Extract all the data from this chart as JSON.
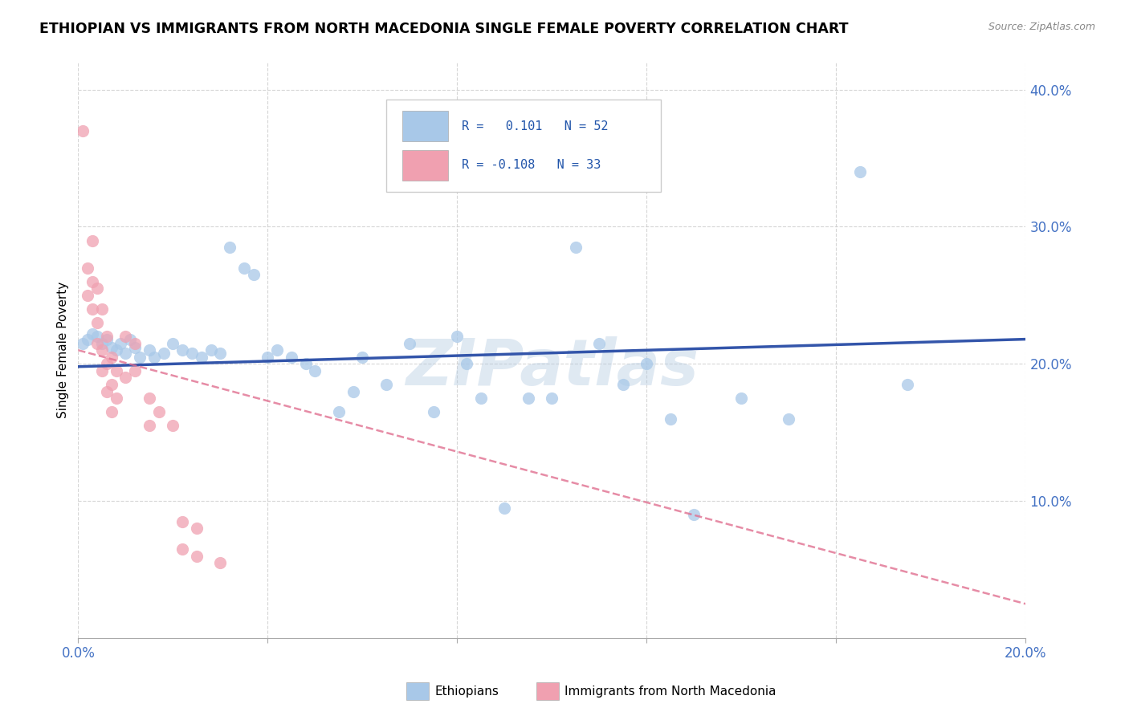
{
  "title": "ETHIOPIAN VS IMMIGRANTS FROM NORTH MACEDONIA SINGLE FEMALE POVERTY CORRELATION CHART",
  "source_text": "Source: ZipAtlas.com",
  "ylabel": "Single Female Poverty",
  "xlim": [
    0.0,
    0.2
  ],
  "ylim": [
    0.0,
    0.42
  ],
  "xticks": [
    0.0,
    0.04,
    0.08,
    0.12,
    0.16,
    0.2
  ],
  "yticks": [
    0.0,
    0.1,
    0.2,
    0.3,
    0.4
  ],
  "watermark": "ZIPatlas",
  "blue_color": "#A8C8E8",
  "pink_color": "#F0A0B0",
  "blue_line_color": "#3355AA",
  "pink_line_color": "#E07090",
  "blue_scatter": [
    [
      0.001,
      0.215
    ],
    [
      0.002,
      0.218
    ],
    [
      0.003,
      0.222
    ],
    [
      0.004,
      0.22
    ],
    [
      0.005,
      0.215
    ],
    [
      0.006,
      0.218
    ],
    [
      0.007,
      0.212
    ],
    [
      0.008,
      0.21
    ],
    [
      0.009,
      0.215
    ],
    [
      0.01,
      0.208
    ],
    [
      0.011,
      0.218
    ],
    [
      0.012,
      0.212
    ],
    [
      0.013,
      0.205
    ],
    [
      0.015,
      0.21
    ],
    [
      0.016,
      0.205
    ],
    [
      0.018,
      0.208
    ],
    [
      0.02,
      0.215
    ],
    [
      0.022,
      0.21
    ],
    [
      0.024,
      0.208
    ],
    [
      0.026,
      0.205
    ],
    [
      0.028,
      0.21
    ],
    [
      0.03,
      0.208
    ],
    [
      0.032,
      0.285
    ],
    [
      0.035,
      0.27
    ],
    [
      0.037,
      0.265
    ],
    [
      0.04,
      0.205
    ],
    [
      0.042,
      0.21
    ],
    [
      0.045,
      0.205
    ],
    [
      0.048,
      0.2
    ],
    [
      0.05,
      0.195
    ],
    [
      0.055,
      0.165
    ],
    [
      0.058,
      0.18
    ],
    [
      0.06,
      0.205
    ],
    [
      0.065,
      0.185
    ],
    [
      0.07,
      0.215
    ],
    [
      0.075,
      0.165
    ],
    [
      0.08,
      0.22
    ],
    [
      0.082,
      0.2
    ],
    [
      0.085,
      0.175
    ],
    [
      0.09,
      0.095
    ],
    [
      0.095,
      0.175
    ],
    [
      0.1,
      0.175
    ],
    [
      0.105,
      0.285
    ],
    [
      0.11,
      0.215
    ],
    [
      0.115,
      0.185
    ],
    [
      0.12,
      0.2
    ],
    [
      0.125,
      0.16
    ],
    [
      0.13,
      0.09
    ],
    [
      0.14,
      0.175
    ],
    [
      0.15,
      0.16
    ],
    [
      0.165,
      0.34
    ],
    [
      0.175,
      0.185
    ]
  ],
  "pink_scatter": [
    [
      0.001,
      0.37
    ],
    [
      0.002,
      0.27
    ],
    [
      0.002,
      0.25
    ],
    [
      0.003,
      0.29
    ],
    [
      0.003,
      0.26
    ],
    [
      0.003,
      0.24
    ],
    [
      0.004,
      0.255
    ],
    [
      0.004,
      0.23
    ],
    [
      0.004,
      0.215
    ],
    [
      0.005,
      0.24
    ],
    [
      0.005,
      0.21
    ],
    [
      0.005,
      0.195
    ],
    [
      0.006,
      0.22
    ],
    [
      0.006,
      0.2
    ],
    [
      0.006,
      0.18
    ],
    [
      0.007,
      0.205
    ],
    [
      0.007,
      0.185
    ],
    [
      0.007,
      0.165
    ],
    [
      0.008,
      0.195
    ],
    [
      0.008,
      0.175
    ],
    [
      0.01,
      0.22
    ],
    [
      0.01,
      0.19
    ],
    [
      0.012,
      0.215
    ],
    [
      0.012,
      0.195
    ],
    [
      0.015,
      0.175
    ],
    [
      0.015,
      0.155
    ],
    [
      0.017,
      0.165
    ],
    [
      0.02,
      0.155
    ],
    [
      0.022,
      0.085
    ],
    [
      0.022,
      0.065
    ],
    [
      0.025,
      0.08
    ],
    [
      0.025,
      0.06
    ],
    [
      0.03,
      0.055
    ]
  ],
  "blue_trendline": [
    [
      0.0,
      0.198
    ],
    [
      0.2,
      0.218
    ]
  ],
  "pink_trendline": [
    [
      0.0,
      0.21
    ],
    [
      0.2,
      0.025
    ]
  ]
}
